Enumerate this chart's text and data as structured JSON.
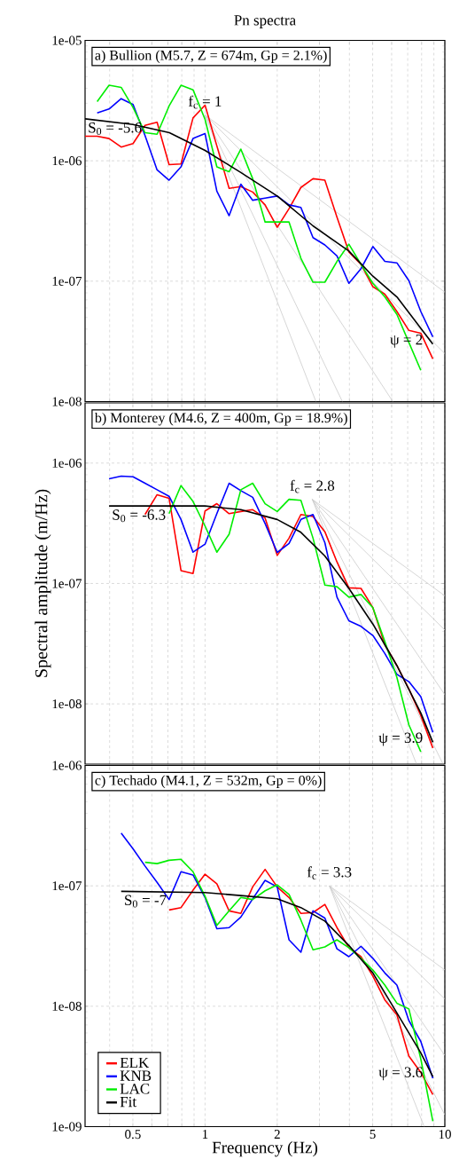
{
  "chart_data": [
    {
      "type": "line",
      "title": "Pn spectra",
      "subtitle": "a) Bullion (M5.7, Z = 674m, Gp = 2.1%)",
      "log": "xy",
      "grid": true,
      "legend": false,
      "tick_labels": "y",
      "xlim": [
        0.316,
        10
      ],
      "ylim": [
        1e-08,
        1e-05
      ],
      "xticks": [
        {
          "value": 0.4,
          "label": null
        },
        0.5,
        {
          "value": 0.6,
          "label": null
        },
        {
          "value": 0.7,
          "label": null
        },
        {
          "value": 0.8,
          "label": null
        },
        {
          "value": 0.9,
          "label": null
        },
        1,
        2,
        {
          "value": 3,
          "label": null
        },
        {
          "value": 4,
          "label": null
        },
        5,
        {
          "value": 6,
          "label": null
        },
        {
          "value": 7,
          "label": null
        },
        {
          "value": 8,
          "label": null
        },
        {
          "value": 9,
          "label": null
        },
        10
      ],
      "yticks": [
        {
          "value": 1e-08,
          "label": "1e-08"
        },
        {
          "value": 1e-07,
          "label": "1e-07"
        },
        {
          "value": 1e-06,
          "label": "1e-06"
        },
        {
          "value": 1e-05,
          "label": "1e-05"
        }
      ],
      "x": [
        0.316,
        0.355,
        0.398,
        0.447,
        0.501,
        0.562,
        0.631,
        0.708,
        0.794,
        0.891,
        1,
        1.12,
        1.26,
        1.41,
        1.58,
        1.78,
        2,
        2.24,
        2.51,
        2.82,
        3.16,
        3.55,
        3.98,
        4.47,
        5.01,
        5.62,
        6.31,
        7.08,
        7.94,
        8.91
      ],
      "series": [
        {
          "color": "#cccccc",
          "x": [
            1,
            10
          ],
          "values": [
            2.4e-06,
            8.1e-08
          ]
        },
        {
          "color": "#cccccc",
          "x": [
            1,
            10
          ],
          "values": [
            2.4e-06,
            2.5e-08
          ]
        },
        {
          "color": "#cccccc",
          "x": [
            1,
            6.07
          ],
          "values": [
            2.4e-06,
            1e-08
          ]
        },
        {
          "color": "#cccccc",
          "x": [
            1,
            3.74
          ],
          "values": [
            2.4e-06,
            1e-08
          ]
        },
        {
          "color": "#cccccc",
          "x": [
            1,
            2.9
          ],
          "values": [
            2.4e-06,
            1e-08
          ]
        },
        {
          "color": "#ff0000",
          "values": [
            1.6e-06,
            1.6e-06,
            1.53e-06,
            1.3e-06,
            1.39e-06,
            1.97e-06,
            2.09e-06,
            9.3e-07,
            9.4e-07,
            2.27e-06,
            2.9e-06,
            1.33e-06,
            5.9e-07,
            6.1e-07,
            5.5e-07,
            4.3e-07,
            2.8e-07,
            4e-07,
            6e-07,
            7.1e-07,
            6.9e-07,
            3.4e-07,
            1.75e-07,
            1.38e-07,
            9e-08,
            7.8e-08,
            5.6e-08,
            3.9e-08,
            3.7e-08,
            2.26e-08
          ]
        },
        {
          "color": "#0000ff",
          "values": [
            null,
            2.5e-06,
            2.69e-06,
            3.28e-06,
            2.93e-06,
            1.62e-06,
            8.4e-07,
            6.9e-07,
            8.9e-07,
            1.53e-06,
            1.68e-06,
            5.6e-07,
            3.5e-07,
            6.4e-07,
            4.7e-07,
            4.9e-07,
            5.1e-07,
            4.3e-07,
            4.1e-07,
            2.3e-07,
            2e-07,
            1.62e-07,
            9.6e-08,
            1.27e-07,
            1.94e-07,
            1.46e-07,
            1.42e-07,
            1.01e-07,
            5.6e-08,
            3.45e-08
          ]
        },
        {
          "color": "#00ee00",
          "values": [
            null,
            3.1e-06,
            4.24e-06,
            4.07e-06,
            2.77e-06,
            1.71e-06,
            1.66e-06,
            2.85e-06,
            4.24e-06,
            3.89e-06,
            2.21e-06,
            8.9e-07,
            8.1e-07,
            1.25e-06,
            7.1e-07,
            3.1e-07,
            3.1e-07,
            3.1e-07,
            1.55e-07,
            9.8e-08,
            9.8e-08,
            1.46e-07,
            2.03e-07,
            1.38e-07,
            9.6e-08,
            7.4e-08,
            5.3e-08,
            3.1e-08,
            1.82e-08,
            null
          ]
        },
        {
          "color": "#000000",
          "x": [
            0.316,
            0.5,
            0.71,
            1,
            1.41,
            2,
            2.82,
            3.98,
            5.01,
            6.31,
            8.91
          ],
          "values": [
            2.23e-06,
            2e-06,
            1.71e-06,
            1.22e-06,
            8e-07,
            5.1e-07,
            2.88e-07,
            1.78e-07,
            1.1e-07,
            7.4e-08,
            3e-08
          ]
        }
      ],
      "annotations": [
        {
          "text": "f$_{c}$ = 1",
          "x": 1,
          "y": 2.4e-06
        },
        {
          "text": "S$_{0}$ = -5.6",
          "x": 0.316,
          "y": 2.23e-06
        },
        {
          "text": "ψ = 2",
          "x": 8.91,
          "y": 3e-08
        }
      ]
    },
    {
      "type": "line",
      "subtitle": "b) Monterey (M4.6, Z = 400m, Gp = 18.9%)",
      "ylabel": "Spectral amplitude (m/Hz)",
      "log": "xy",
      "grid": true,
      "legend": false,
      "tick_labels": "y",
      "xlim": [
        0.316,
        10
      ],
      "ylim": [
        3.16e-09,
        3.16e-06
      ],
      "xticks": [
        {
          "value": 0.4,
          "label": null
        },
        0.5,
        {
          "value": 0.6,
          "label": null
        },
        {
          "value": 0.7,
          "label": null
        },
        {
          "value": 0.8,
          "label": null
        },
        {
          "value": 0.9,
          "label": null
        },
        1,
        2,
        {
          "value": 3,
          "label": null
        },
        {
          "value": 4,
          "label": null
        },
        5,
        {
          "value": 6,
          "label": null
        },
        {
          "value": 7,
          "label": null
        },
        {
          "value": 8,
          "label": null
        },
        {
          "value": 9,
          "label": null
        },
        10
      ],
      "yticks": [
        {
          "value": 1e-08,
          "label": "1e-08"
        },
        {
          "value": 1e-07,
          "label": "1e-07"
        },
        {
          "value": 1e-06,
          "label": "1e-06"
        }
      ],
      "x": [
        0.398,
        0.447,
        0.501,
        0.562,
        0.631,
        0.708,
        0.794,
        0.891,
        1,
        1.12,
        1.26,
        1.41,
        1.58,
        1.78,
        2,
        2.24,
        2.51,
        2.82,
        3.16,
        3.55,
        3.98,
        4.47,
        5.01,
        5.62,
        6.31,
        7.08,
        7.94,
        8.91
      ],
      "series": [
        {
          "color": "#cccccc",
          "x": [
            2.8,
            10
          ],
          "values": [
            5e-07,
            7.9e-08
          ]
        },
        {
          "color": "#cccccc",
          "x": [
            2.8,
            10
          ],
          "values": [
            5e-07,
            4.1e-08
          ]
        },
        {
          "color": "#cccccc",
          "x": [
            2.8,
            10
          ],
          "values": [
            5e-07,
            1.19e-08
          ]
        },
        {
          "color": "#cccccc",
          "x": [
            2.8,
            9.8
          ],
          "values": [
            5e-07,
            3.2e-09
          ]
        },
        {
          "color": "#cccccc",
          "x": [
            2.8,
            7.6
          ],
          "values": [
            5e-07,
            3.2e-09
          ]
        },
        {
          "color": "#ff0000",
          "values": [
            null,
            null,
            null,
            3.74e-07,
            5.46e-07,
            5.1e-07,
            1.28e-07,
            1.21e-07,
            4e-07,
            4.6e-07,
            3.8e-07,
            3.96e-07,
            4.1e-07,
            3.5e-07,
            1.71e-07,
            2.38e-07,
            3.74e-07,
            3.6e-07,
            2.69e-07,
            1.51e-07,
            9.2e-08,
            9.1e-08,
            6.3e-08,
            3.1e-08,
            2.08e-08,
            1.33e-08,
            8e-09,
            4.3e-09
          ]
        },
        {
          "color": "#0000ff",
          "values": [
            7.4e-07,
            7.8e-07,
            7.7e-07,
            6.8e-07,
            6e-07,
            5.3e-07,
            3.4e-07,
            1.82e-07,
            2.12e-07,
            3.8e-07,
            6.8e-07,
            5.9e-07,
            5.2e-07,
            3.15e-07,
            1.81e-07,
            2.15e-07,
            3.4e-07,
            3.74e-07,
            2.18e-07,
            7.7e-08,
            4.9e-08,
            4.4e-08,
            3.7e-08,
            2.62e-08,
            1.76e-08,
            1.53e-08,
            1.15e-08,
            5.8e-09
          ]
        },
        {
          "color": "#00ee00",
          "values": [
            null,
            null,
            null,
            null,
            null,
            3.8e-07,
            6.5e-07,
            4.8e-07,
            3e-07,
            1.82e-07,
            2.56e-07,
            6e-07,
            6.8e-07,
            4.6e-07,
            3.96e-07,
            5e-07,
            4.9e-07,
            2.38e-07,
            9.7e-08,
            9.4e-08,
            7.7e-08,
            8.1e-08,
            6.3e-08,
            3.3e-08,
            1.66e-08,
            6.7e-09,
            4e-09,
            null
          ]
        },
        {
          "color": "#000000",
          "x": [
            0.398,
            1,
            1.41,
            2,
            2.51,
            3.16,
            3.98,
            5.01,
            6.31,
            7.94,
            8.91
          ],
          "values": [
            4.4e-07,
            4.4e-07,
            4.1e-07,
            3.4e-07,
            2.66e-07,
            1.69e-07,
            9.1e-08,
            4.6e-08,
            2.08e-08,
            8.4e-09,
            4.8e-09
          ]
        }
      ],
      "annotations": [
        {
          "text": "f$_{c}$ = 2.8",
          "x": 2.8,
          "y": 5e-07
        },
        {
          "text": "S$_{0}$ = -6.3",
          "x": 0.398,
          "y": 4.4e-07
        },
        {
          "text": "ψ = 3.9",
          "x": 8.91,
          "y": 4.8e-09
        }
      ]
    },
    {
      "type": "line",
      "subtitle": "c) Techado (M4.1, Z = 532m, Gp = 0%)",
      "xlabel": "Frequency (Hz)",
      "log": "xy",
      "grid": true,
      "legend": "bottom left",
      "xlim": [
        0.316,
        10
      ],
      "ylim": [
        1e-09,
        1e-06
      ],
      "xticks": [
        {
          "value": 0.4,
          "label": null
        },
        0.5,
        {
          "value": 0.6,
          "label": null
        },
        {
          "value": 0.7,
          "label": null
        },
        {
          "value": 0.8,
          "label": null
        },
        {
          "value": 0.9,
          "label": null
        },
        1,
        2,
        {
          "value": 3,
          "label": null
        },
        {
          "value": 4,
          "label": null
        },
        5,
        {
          "value": 6,
          "label": null
        },
        {
          "value": 7,
          "label": null
        },
        {
          "value": 8,
          "label": null
        },
        {
          "value": 9,
          "label": null
        },
        10
      ],
      "yticks": [
        {
          "value": 1e-09,
          "label": "1e-09"
        },
        {
          "value": 1e-08,
          "label": "1e-08"
        },
        {
          "value": 1e-07,
          "label": "1e-07"
        },
        {
          "value": 1e-06,
          "label": "1e-06"
        }
      ],
      "x": [
        0.447,
        0.501,
        0.562,
        0.631,
        0.708,
        0.794,
        0.891,
        1,
        1.12,
        1.26,
        1.41,
        1.58,
        1.78,
        2,
        2.24,
        2.51,
        2.82,
        3.16,
        3.55,
        3.98,
        4.47,
        5.01,
        5.62,
        6.31,
        7.08,
        7.94,
        8.91
      ],
      "series": [
        {
          "color": "#cccccc",
          "x": [
            3.3,
            10
          ],
          "values": [
            1e-07,
            2e-08
          ]
        },
        {
          "color": "#cccccc",
          "x": [
            3.3,
            10
          ],
          "values": [
            1e-07,
            1.15e-08
          ]
        },
        {
          "color": "#cccccc",
          "x": [
            3.3,
            10
          ],
          "values": [
            1e-07,
            3.9e-09
          ]
        },
        {
          "color": "#cccccc",
          "x": [
            3.3,
            10
          ],
          "values": [
            1e-07,
            1.25e-09
          ]
        },
        {
          "color": "#cccccc",
          "x": [
            3.3,
            8.2
          ],
          "values": [
            1e-07,
            1e-09
          ]
        },
        {
          "name": "ELK",
          "color": "#ff0000",
          "values": [
            null,
            null,
            null,
            null,
            6.3e-08,
            6.6e-08,
            9.2e-08,
            1.25e-07,
            1.04e-07,
            6.2e-08,
            5.9e-08,
            9.8e-08,
            1.37e-07,
            9.8e-08,
            8e-08,
            5.9e-08,
            6e-08,
            7e-08,
            4.5e-08,
            3.06e-08,
            2.58e-08,
            1.78e-08,
            1.13e-08,
            8.5e-09,
            3.86e-09,
            2.82e-09,
            1.85e-09
          ]
        },
        {
          "name": "KNB",
          "color": "#0000ff",
          "values": [
            2.74e-07,
            2.03e-07,
            1.46e-07,
            1.07e-07,
            7.7e-08,
            1.31e-07,
            1.23e-07,
            8e-08,
            4.4e-08,
            4.5e-08,
            5.5e-08,
            7.8e-08,
            1.11e-07,
            9.8e-08,
            3.56e-08,
            2.81e-08,
            6.2e-08,
            5.4e-08,
            3e-08,
            2.58e-08,
            3.15e-08,
            2.5e-08,
            1.89e-08,
            1.5e-08,
            7.6e-09,
            5.1e-09,
            2.52e-09
          ]
        },
        {
          "name": "LAC",
          "color": "#00ee00",
          "values": [
            null,
            null,
            1.57e-07,
            1.53e-07,
            1.63e-07,
            1.66e-07,
            1.31e-07,
            8.2e-08,
            4.7e-08,
            6.2e-08,
            8e-08,
            7.7e-08,
            9.1e-08,
            1.02e-07,
            8.5e-08,
            5.2e-08,
            2.94e-08,
            3.11e-08,
            3.56e-08,
            3.06e-08,
            2.5e-08,
            2e-08,
            1.5e-08,
            1.06e-08,
            9.5e-09,
            3.65e-09,
            1.11e-09
          ]
        },
        {
          "name": "Fit",
          "color": "#000000",
          "x": [
            0.447,
            1,
            1.41,
            2,
            2.51,
            3.16,
            3.98,
            5.01,
            6.31,
            7.94,
            8.91
          ],
          "values": [
            9e-08,
            8.8e-08,
            8.3e-08,
            7.8e-08,
            6.6e-08,
            5.1e-08,
            3.2e-08,
            1.89e-08,
            8.8e-09,
            4.1e-09,
            2.6e-09
          ]
        }
      ],
      "annotations": [
        {
          "text": "f$_{c}$ = 3.3",
          "x": 3.3,
          "y": 1e-07
        },
        {
          "text": "S$_{0}$ = -7",
          "x": 0.447,
          "y": 9e-08
        },
        {
          "text": "ψ = 3.6",
          "x": 8.91,
          "y": 2.6e-09
        }
      ]
    }
  ]
}
